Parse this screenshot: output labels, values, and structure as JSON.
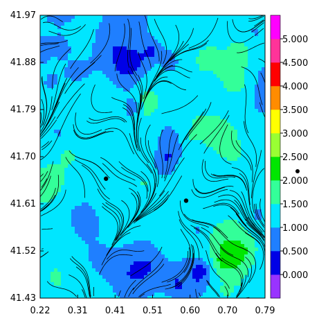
{
  "chart_data": {
    "type": "heatmap",
    "overlay": "streamlines",
    "x_ticks": [
      "0.22",
      "0.31",
      "0.41",
      "0.51",
      "0.60",
      "0.70",
      "0.79"
    ],
    "y_ticks": [
      "41.97",
      "41.88",
      "41.79",
      "41.70",
      "41.61",
      "41.52",
      "41.43"
    ],
    "xlim": [
      0.22,
      0.79
    ],
    "ylim": [
      41.43,
      41.97
    ],
    "colorbar": {
      "labels": [
        "0.000",
        "0.500",
        "1.000",
        "1.500",
        "2.000",
        "2.500",
        "3.000",
        "3.500",
        "4.000",
        "4.500",
        "5.000"
      ],
      "colors": [
        "#9933ff",
        "#0000e6",
        "#1f7fff",
        "#00e6ff",
        "#33ff99",
        "#00e600",
        "#99ff33",
        "#ffff00",
        "#ff8c00",
        "#ff0000",
        "#ff3399",
        "#ff00ff"
      ]
    },
    "markers": [
      {
        "x": 0.387,
        "y": 41.658
      },
      {
        "x": 0.59,
        "y": 41.616
      }
    ],
    "field_colors": {
      "low": "#0000e6",
      "mid_low": "#1f7fff",
      "mid": "#00e6ff",
      "high": "#33ff99",
      "higher": "#00e600"
    }
  }
}
